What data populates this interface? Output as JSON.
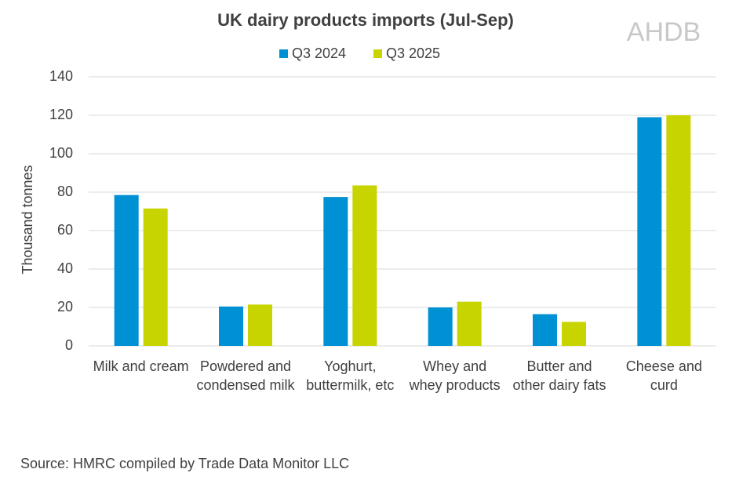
{
  "chart_data": {
    "type": "bar",
    "title": "UK dairy products imports (Jul-Sep)",
    "logo": "AHDB",
    "y_label": "Thousand tonnes",
    "source": "Source: HMRC compiled by Trade Data Monitor LLC",
    "categories": [
      "Milk and cream",
      "Powdered and condensed milk",
      "Yoghurt, buttermilk, etc",
      "Whey and whey products",
      "Butter and other dairy fats",
      "Cheese and curd"
    ],
    "series": [
      {
        "name": "Q3 2024",
        "color": "#0090d4",
        "values": [
          78.5,
          20.5,
          77.5,
          20,
          16.5,
          119
        ]
      },
      {
        "name": "Q3 2025",
        "color": "#c8d400",
        "values": [
          71.5,
          21.5,
          83.5,
          23,
          12.5,
          120
        ]
      }
    ],
    "ylim": [
      0,
      140
    ],
    "yticks": [
      0,
      20,
      40,
      60,
      80,
      100,
      120,
      140
    ],
    "grid": true,
    "legend": "top"
  }
}
